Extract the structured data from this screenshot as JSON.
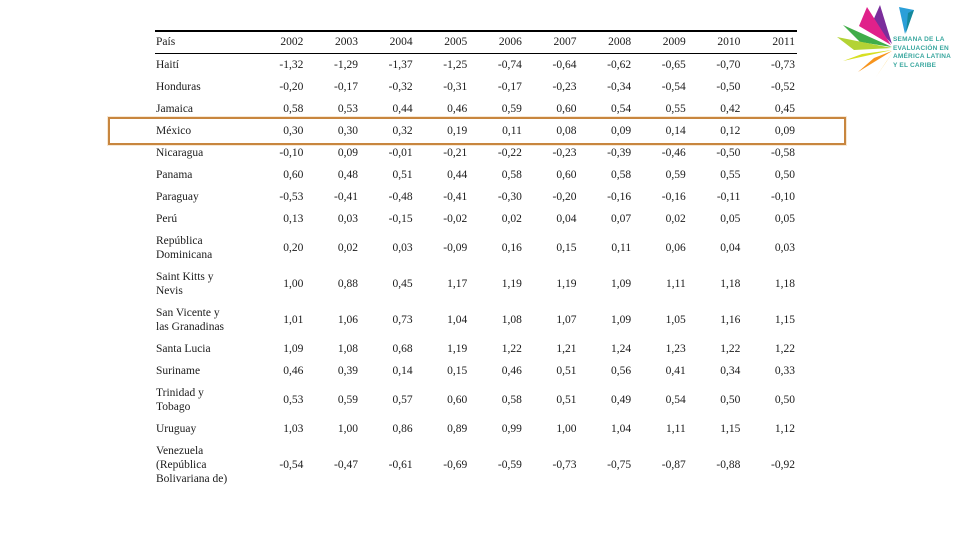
{
  "logo": {
    "text_lines": [
      "SEMANA DE LA",
      "EVALUACIÓN EN",
      "AMÉRICA LATINA",
      "Y EL CARIBE"
    ],
    "text_color": "#3aa79f",
    "pinwheel_colors": [
      "#e0218a",
      "#7b2d9b",
      "#2b9fd8",
      "#14889b",
      "#41ad49",
      "#b3d334",
      "#d7df23",
      "#f7941d",
      "#fdb913"
    ]
  },
  "highlight": {
    "border_color": "#c8863f",
    "highlighted_country": "México"
  },
  "table": {
    "header": {
      "country_label": "País",
      "years": [
        "2002",
        "2003",
        "2004",
        "2005",
        "2006",
        "2007",
        "2008",
        "2009",
        "2010",
        "2011"
      ]
    },
    "rows": [
      {
        "country": "Haití",
        "highlighted": false,
        "values": [
          "-1,32",
          "-1,29",
          "-1,37",
          "-1,25",
          "-0,74",
          "-0,64",
          "-0,62",
          "-0,65",
          "-0,70",
          "-0,73"
        ]
      },
      {
        "country": "Honduras",
        "highlighted": false,
        "values": [
          "-0,20",
          "-0,17",
          "-0,32",
          "-0,31",
          "-0,17",
          "-0,23",
          "-0,34",
          "-0,54",
          "-0,50",
          "-0,52"
        ]
      },
      {
        "country": "Jamaica",
        "highlighted": false,
        "values": [
          "0,58",
          "0,53",
          "0,44",
          "0,46",
          "0,59",
          "0,60",
          "0,54",
          "0,55",
          "0,42",
          "0,45"
        ]
      },
      {
        "country": "México",
        "highlighted": true,
        "values": [
          "0,30",
          "0,30",
          "0,32",
          "0,19",
          "0,11",
          "0,08",
          "0,09",
          "0,14",
          "0,12",
          "0,09"
        ]
      },
      {
        "country": "Nicaragua",
        "highlighted": false,
        "values": [
          "-0,10",
          "0,09",
          "-0,01",
          "-0,21",
          "-0,22",
          "-0,23",
          "-0,39",
          "-0,46",
          "-0,50",
          "-0,58"
        ]
      },
      {
        "country": "Panama",
        "highlighted": false,
        "values": [
          "0,60",
          "0,48",
          "0,51",
          "0,44",
          "0,58",
          "0,60",
          "0,58",
          "0,59",
          "0,55",
          "0,50"
        ]
      },
      {
        "country": "Paraguay",
        "highlighted": false,
        "values": [
          "-0,53",
          "-0,41",
          "-0,48",
          "-0,41",
          "-0,30",
          "-0,20",
          "-0,16",
          "-0,16",
          "-0,11",
          "-0,10"
        ]
      },
      {
        "country": "Perú",
        "highlighted": false,
        "values": [
          "0,13",
          "0,03",
          "-0,15",
          "-0,02",
          "0,02",
          "0,04",
          "0,07",
          "0,02",
          "0,05",
          "0,05"
        ]
      },
      {
        "country": "República Dominicana",
        "highlighted": false,
        "values": [
          "0,20",
          "0,02",
          "0,03",
          "-0,09",
          "0,16",
          "0,15",
          "0,11",
          "0,06",
          "0,04",
          "0,03"
        ]
      },
      {
        "country": "Saint Kitts y Nevis",
        "highlighted": false,
        "values": [
          "1,00",
          "0,88",
          "0,45",
          "1,17",
          "1,19",
          "1,19",
          "1,09",
          "1,11",
          "1,18",
          "1,18"
        ]
      },
      {
        "country": "San Vicente y las Granadinas",
        "highlighted": false,
        "values": [
          "1,01",
          "1,06",
          "0,73",
          "1,04",
          "1,08",
          "1,07",
          "1,09",
          "1,05",
          "1,16",
          "1,15"
        ]
      },
      {
        "country": "Santa Lucia",
        "highlighted": false,
        "values": [
          "1,09",
          "1,08",
          "0,68",
          "1,19",
          "1,22",
          "1,21",
          "1,24",
          "1,23",
          "1,22",
          "1,22"
        ]
      },
      {
        "country": "Suriname",
        "highlighted": false,
        "values": [
          "0,46",
          "0,39",
          "0,14",
          "0,15",
          "0,46",
          "0,51",
          "0,56",
          "0,41",
          "0,34",
          "0,33"
        ]
      },
      {
        "country": "Trinidad y Tobago",
        "highlighted": false,
        "values": [
          "0,53",
          "0,59",
          "0,57",
          "0,60",
          "0,58",
          "0,51",
          "0,49",
          "0,54",
          "0,50",
          "0,50"
        ]
      },
      {
        "country": "Uruguay",
        "highlighted": false,
        "values": [
          "1,03",
          "1,00",
          "0,86",
          "0,89",
          "0,99",
          "1,00",
          "1,04",
          "1,11",
          "1,15",
          "1,12"
        ]
      },
      {
        "country": "Venezuela (República Bolivariana de)",
        "highlighted": false,
        "values": [
          "-0,54",
          "-0,47",
          "-0,61",
          "-0,69",
          "-0,59",
          "-0,73",
          "-0,75",
          "-0,87",
          "-0,88",
          "-0,92"
        ]
      }
    ]
  }
}
